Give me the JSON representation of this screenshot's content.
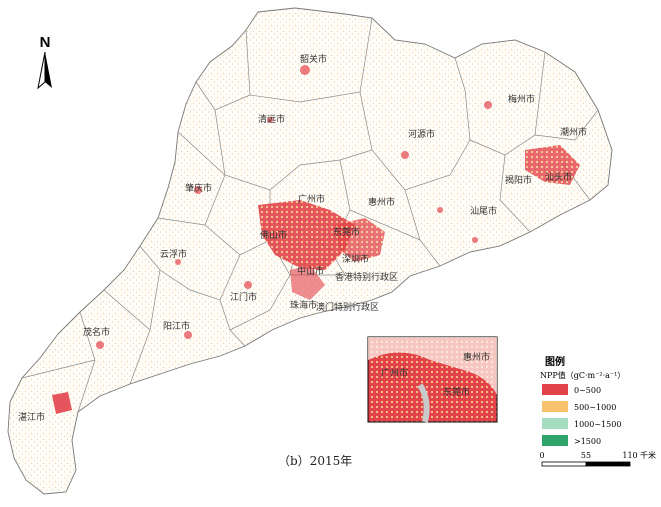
{
  "caption": "（b）2015年",
  "north": {
    "label": "N"
  },
  "cities": [
    {
      "key": "shaoguan",
      "name": "韶关市"
    },
    {
      "key": "meizhou",
      "name": "梅州市"
    },
    {
      "key": "qingyuan",
      "name": "清远市"
    },
    {
      "key": "heyuan",
      "name": "河源市"
    },
    {
      "key": "chaozhou",
      "name": "潮州市"
    },
    {
      "key": "zhaoqing",
      "name": "肇庆市"
    },
    {
      "key": "guangzhou",
      "name": "广州市"
    },
    {
      "key": "huizhou",
      "name": "惠州市"
    },
    {
      "key": "jieyang",
      "name": "揭阳市"
    },
    {
      "key": "shantou",
      "name": "汕头市"
    },
    {
      "key": "shanwei",
      "name": "汕尾市"
    },
    {
      "key": "foshan",
      "name": "佛山市"
    },
    {
      "key": "dongguan",
      "name": "东莞市"
    },
    {
      "key": "shenzhen",
      "name": "深圳市"
    },
    {
      "key": "yunfu",
      "name": "云浮市"
    },
    {
      "key": "zhongshan",
      "name": "中山市"
    },
    {
      "key": "hongkong",
      "name": "香港特别行政区"
    },
    {
      "key": "jiangmen",
      "name": "江门市"
    },
    {
      "key": "zhuhai",
      "name": "珠海市"
    },
    {
      "key": "macao",
      "name": "澳门特别行政区"
    },
    {
      "key": "maoming",
      "name": "茂名市"
    },
    {
      "key": "yangjiang",
      "name": "阳江市"
    },
    {
      "key": "zhanjiang",
      "name": "湛江市"
    }
  ],
  "inset": {
    "labels": [
      "惠州市",
      "广州市",
      "东莞市"
    ]
  },
  "legend": {
    "title": "图例",
    "subtitle": "NPP值（gC·m⁻²·a⁻¹）",
    "classes": [
      {
        "label": "0~500",
        "color": "#e2434b"
      },
      {
        "label": "500~1000",
        "color": "#f7c16d"
      },
      {
        "label": "1000~1500",
        "color": "#a6dcc0"
      },
      {
        "label": ">1500",
        "color": "#2ea36a"
      }
    ]
  },
  "scale": {
    "ticks": [
      "0",
      "55",
      "110"
    ],
    "unit": "千米"
  }
}
